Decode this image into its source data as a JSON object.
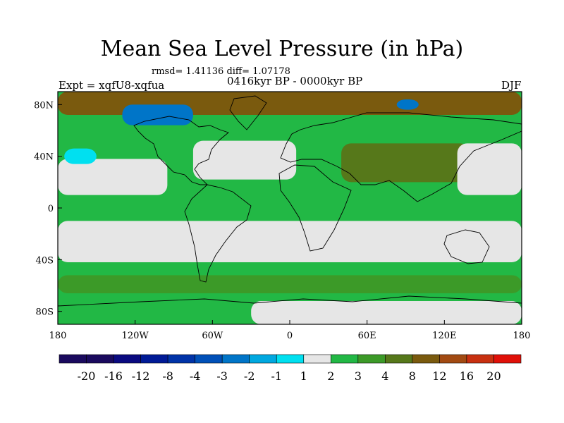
{
  "chart_data": {
    "type": "heatmap",
    "title": "Mean Sea Level Pressure (in hPa)",
    "stats_label": "rmsd= 1.41136 diff= 1.07178",
    "period_label": "0416kyr BP - 0000kyr BP",
    "experiment_label": "Expt = xqfU8-xqfua",
    "season_label": "DJF",
    "projection": "cylindrical equidistant",
    "xlim": [
      -180,
      180
    ],
    "ylim": [
      -90,
      90
    ],
    "x_ticks": [
      {
        "value": -180,
        "label": "180"
      },
      {
        "value": -120,
        "label": "120W"
      },
      {
        "value": -60,
        "label": "60W"
      },
      {
        "value": 0,
        "label": "0"
      },
      {
        "value": 60,
        "label": "60E"
      },
      {
        "value": 120,
        "label": "120E"
      },
      {
        "value": 180,
        "label": "180"
      }
    ],
    "y_ticks": [
      {
        "value": 80,
        "label": "80N"
      },
      {
        "value": 40,
        "label": "40N"
      },
      {
        "value": 0,
        "label": "0"
      },
      {
        "value": -40,
        "label": "40S"
      },
      {
        "value": -80,
        "label": "80S"
      }
    ],
    "colorbar": {
      "levels": [
        "-20",
        "-16",
        "-12",
        "-8",
        "-4",
        "-3",
        "-2",
        "-1",
        "1",
        "2",
        "3",
        "4",
        "8",
        "12",
        "16",
        "20"
      ],
      "colors": [
        "#1a0a5e",
        "#0a0a80",
        "#001a96",
        "#0033a8",
        "#0050b8",
        "#0075c8",
        "#00a8e0",
        "#00e0f0",
        "#e6e6e6",
        "#22b845",
        "#3c9a28",
        "#56781a",
        "#7a5a0e",
        "#a24a12",
        "#c83010",
        "#e01008"
      ]
    },
    "field_regions": [
      {
        "name": "base",
        "level_index": 9,
        "lon": [
          -180,
          180
        ],
        "lat": [
          -90,
          90
        ]
      },
      {
        "name": "arctic-high",
        "level_index": 12,
        "lon": [
          -180,
          180
        ],
        "lat": [
          72,
          90
        ]
      },
      {
        "name": "north-pacific-neutral",
        "level_index": 8,
        "lon": [
          -180,
          -95
        ],
        "lat": [
          10,
          38
        ]
      },
      {
        "name": "north-pacific-low",
        "level_index": 7,
        "lon": [
          -175,
          -150
        ],
        "lat": [
          34,
          46
        ]
      },
      {
        "name": "north-atlantic-neutral",
        "level_index": 8,
        "lon": [
          -75,
          5
        ],
        "lat": [
          22,
          52
        ]
      },
      {
        "name": "north-america-low",
        "level_index": 5,
        "lon": [
          -130,
          -75
        ],
        "lat": [
          64,
          80
        ]
      },
      {
        "name": "central-asia-high",
        "level_index": 11,
        "lon": [
          40,
          140
        ],
        "lat": [
          20,
          50
        ]
      },
      {
        "name": "east-pacific-neutral",
        "level_index": 8,
        "lon": [
          130,
          180
        ],
        "lat": [
          10,
          50
        ]
      },
      {
        "name": "siberia-low",
        "level_index": 5,
        "lon": [
          83,
          100
        ],
        "lat": [
          76,
          84
        ]
      },
      {
        "name": "southern-subtropic-neutral",
        "level_index": 8,
        "lon": [
          -180,
          180
        ],
        "lat": [
          -42,
          -10
        ]
      },
      {
        "name": "southern-ocean-high",
        "level_index": 10,
        "lon": [
          -180,
          180
        ],
        "lat": [
          -66,
          -52
        ]
      },
      {
        "name": "antarctic-neutral",
        "level_index": 8,
        "lon": [
          -30,
          180
        ],
        "lat": [
          -90,
          -72
        ]
      }
    ]
  }
}
